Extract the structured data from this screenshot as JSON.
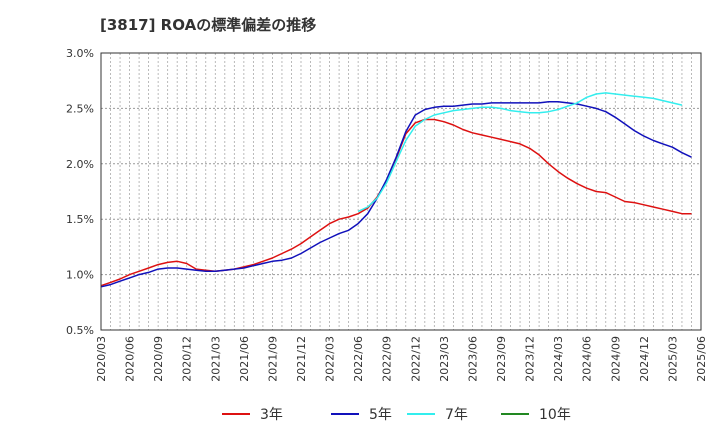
{
  "title": "[3817]  ROAの標準偏差の推移",
  "chart_data": {
    "type": "line",
    "title": "[3817]  ROAの標準偏差の推移",
    "xlabel": "",
    "ylabel": "",
    "ylim": [
      0.5,
      3.0
    ],
    "y_ticks": [
      "0.5%",
      "1.0%",
      "1.5%",
      "2.0%",
      "2.5%",
      "3.0%"
    ],
    "x_ticks": [
      "2020/03",
      "2020/06",
      "2020/09",
      "2020/12",
      "2021/03",
      "2021/06",
      "2021/09",
      "2021/12",
      "2022/03",
      "2022/06",
      "2022/09",
      "2022/12",
      "2023/03",
      "2023/06",
      "2023/09",
      "2023/12",
      "2024/03",
      "2024/06",
      "2024/09",
      "2024/12",
      "2025/03",
      "2025/06"
    ],
    "grid": true,
    "legend_position": "bottom",
    "series": [
      {
        "name": "3年",
        "color": "#dd1111",
        "start_month_index": 0,
        "values": [
          0.9,
          0.93,
          0.96,
          1.0,
          1.03,
          1.06,
          1.09,
          1.11,
          1.12,
          1.1,
          1.05,
          1.04,
          1.03,
          1.04,
          1.05,
          1.07,
          1.09,
          1.12,
          1.15,
          1.19,
          1.23,
          1.28,
          1.34,
          1.4,
          1.46,
          1.5,
          1.52,
          1.55,
          1.6,
          1.7,
          1.85,
          2.05,
          2.27,
          2.37,
          2.4,
          2.4,
          2.38,
          2.35,
          2.31,
          2.28,
          2.26,
          2.24,
          2.22,
          2.2,
          2.18,
          2.14,
          2.08,
          2.0,
          1.93,
          1.87,
          1.82,
          1.78,
          1.75,
          1.74,
          1.7,
          1.66,
          1.65,
          1.63,
          1.61,
          1.59,
          1.57,
          1.55,
          1.55
        ]
      },
      {
        "name": "5年",
        "color": "#1111bb",
        "start_month_index": 0,
        "values": [
          0.89,
          0.91,
          0.94,
          0.97,
          1.0,
          1.02,
          1.05,
          1.06,
          1.06,
          1.05,
          1.04,
          1.03,
          1.03,
          1.04,
          1.05,
          1.06,
          1.08,
          1.1,
          1.12,
          1.13,
          1.15,
          1.19,
          1.24,
          1.29,
          1.33,
          1.37,
          1.4,
          1.46,
          1.55,
          1.69,
          1.86,
          2.06,
          2.29,
          2.44,
          2.49,
          2.51,
          2.52,
          2.52,
          2.53,
          2.54,
          2.54,
          2.55,
          2.55,
          2.55,
          2.55,
          2.55,
          2.55,
          2.56,
          2.56,
          2.55,
          2.54,
          2.52,
          2.5,
          2.47,
          2.42,
          2.36,
          2.3,
          2.25,
          2.21,
          2.18,
          2.15,
          2.1,
          2.06
        ]
      },
      {
        "name": "7年",
        "color": "#33eeee",
        "start_month_index": 27,
        "values": [
          1.57,
          1.61,
          1.69,
          1.83,
          2.02,
          2.21,
          2.34,
          2.4,
          2.44,
          2.46,
          2.48,
          2.49,
          2.5,
          2.51,
          2.51,
          2.5,
          2.48,
          2.47,
          2.46,
          2.46,
          2.47,
          2.49,
          2.52,
          2.55,
          2.6,
          2.63,
          2.64,
          2.63,
          2.62,
          2.61,
          2.6,
          2.59,
          2.57,
          2.55,
          2.53
        ]
      },
      {
        "name": "10年",
        "color": "#228822",
        "start_month_index": 0,
        "values": []
      }
    ]
  }
}
